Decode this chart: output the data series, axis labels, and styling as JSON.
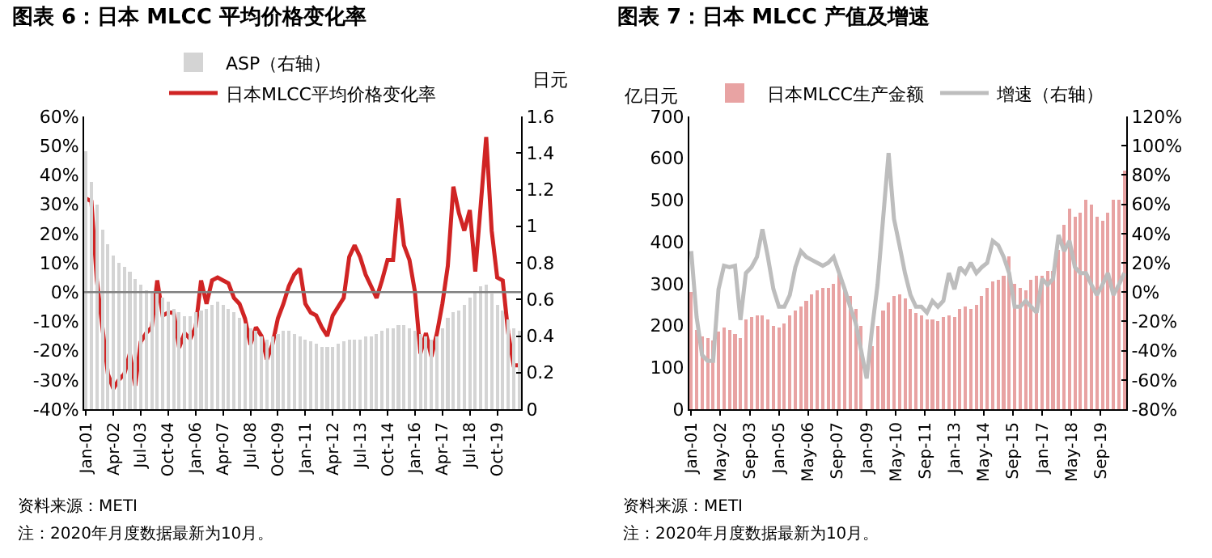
{
  "chart_data": [
    {
      "type": "bar",
      "title": "图表 6：日本 MLCC 平均价格变化率",
      "ylabel": null,
      "y2label": "日元",
      "legend": "top",
      "x": [
        "2001-01",
        "2001-04",
        "2001-07",
        "2001-10",
        "2002-01",
        "2002-04",
        "2002-07",
        "2002-10",
        "2003-01",
        "2003-04",
        "2003-07",
        "2003-10",
        "2004-01",
        "2004-04",
        "2004-07",
        "2004-10",
        "2005-01",
        "2005-04",
        "2005-07",
        "2005-10",
        "2006-01",
        "2006-04",
        "2006-07",
        "2006-10",
        "2007-01",
        "2007-04",
        "2007-07",
        "2007-10",
        "2008-01",
        "2008-04",
        "2008-07",
        "2008-10",
        "2009-01",
        "2009-04",
        "2009-07",
        "2009-10",
        "2010-01",
        "2010-04",
        "2010-07",
        "2010-10",
        "2011-01",
        "2011-04",
        "2011-07",
        "2011-10",
        "2012-01",
        "2012-04",
        "2012-07",
        "2012-10",
        "2013-01",
        "2013-04",
        "2013-07",
        "2013-10",
        "2014-01",
        "2014-04",
        "2014-07",
        "2014-10",
        "2015-01",
        "2015-04",
        "2015-07",
        "2015-10",
        "2016-01",
        "2016-04",
        "2016-07",
        "2016-10",
        "2017-01",
        "2017-04",
        "2017-07",
        "2017-10",
        "2018-01",
        "2018-04",
        "2018-07",
        "2018-10",
        "2019-01",
        "2019-04",
        "2019-07",
        "2019-10",
        "2020-01",
        "2020-04",
        "2020-07",
        "2020-10"
      ],
      "series": [
        {
          "name": "ASP（右轴）",
          "axis": "y2",
          "color": "#d4d4d4",
          "values": [
            1.41,
            1.24,
            1.12,
            0.98,
            0.9,
            0.84,
            0.8,
            0.78,
            0.75,
            0.71,
            0.68,
            0.65,
            0.64,
            0.63,
            0.61,
            0.59,
            0.55,
            0.53,
            0.51,
            0.51,
            0.53,
            0.54,
            0.55,
            0.57,
            0.59,
            0.57,
            0.55,
            0.53,
            0.5,
            0.47,
            0.44,
            0.43,
            0.4,
            0.38,
            0.4,
            0.41,
            0.43,
            0.43,
            0.41,
            0.4,
            0.38,
            0.37,
            0.36,
            0.34,
            0.34,
            0.34,
            0.36,
            0.37,
            0.38,
            0.38,
            0.38,
            0.4,
            0.4,
            0.41,
            0.43,
            0.44,
            0.44,
            0.46,
            0.46,
            0.44,
            0.43,
            0.41,
            0.4,
            0.38,
            0.4,
            0.44,
            0.5,
            0.53,
            0.54,
            0.57,
            0.61,
            0.64,
            0.67,
            0.68,
            0.63,
            0.57,
            0.54,
            0.49,
            0.44,
            0.43
          ]
        },
        {
          "name": "日本MLCC平均价格变化率",
          "type": "line",
          "color": "#d02424",
          "values": [
            32,
            31,
            4,
            -12,
            -28,
            -33,
            -30,
            -28,
            -21,
            -32,
            -17,
            -14,
            -12,
            4,
            -8,
            -7,
            -7,
            -19,
            -14,
            -16,
            -12,
            4,
            -4,
            4,
            5,
            4,
            3,
            -2,
            -4,
            -9,
            -18,
            -12,
            -15,
            -23,
            -18,
            -9,
            -4,
            2,
            6,
            8,
            -4,
            -7,
            -8,
            -12,
            -15,
            -8,
            -5,
            -2,
            12,
            16,
            12,
            6,
            2,
            -2,
            4,
            11,
            11,
            32,
            16,
            11,
            0,
            -21,
            -14,
            -22,
            -14,
            -4,
            9,
            36,
            27,
            21,
            28,
            7,
            30,
            53,
            21,
            5,
            4,
            -14,
            -25,
            -25
          ]
        }
      ],
      "xlim": [
        "2000-12",
        "2020-11"
      ],
      "xticks": [
        {
          "value": "2001-01",
          "label": "Jan-01"
        },
        {
          "value": "2002-04",
          "label": "Apr-02"
        },
        {
          "value": "2003-07",
          "label": "Jul-03"
        },
        {
          "value": "2004-10",
          "label": "Oct-04"
        },
        {
          "value": "2006-01",
          "label": "Jan-06"
        },
        {
          "value": "2007-04",
          "label": "Apr-07"
        },
        {
          "value": "2008-07",
          "label": "Jul-08"
        },
        {
          "value": "2009-10",
          "label": "Oct-09"
        },
        {
          "value": "2011-01",
          "label": "Jan-11"
        },
        {
          "value": "2012-04",
          "label": "Apr-12"
        },
        {
          "value": "2013-07",
          "label": "Jul-13"
        },
        {
          "value": "2014-10",
          "label": "Oct-14"
        },
        {
          "value": "2016-01",
          "label": "Jan-16"
        },
        {
          "value": "2017-04",
          "label": "Apr-17"
        },
        {
          "value": "2018-07",
          "label": "Jul-18"
        },
        {
          "value": "2019-10",
          "label": "Oct-19"
        }
      ],
      "ylim": [
        -40,
        60
      ],
      "yticks": [
        {
          "value": -40,
          "label": "-40%"
        },
        {
          "value": -30,
          "label": "-30%"
        },
        {
          "value": -20,
          "label": "-20%"
        },
        {
          "value": -10,
          "label": "-10%"
        },
        {
          "value": 0,
          "label": "0%"
        },
        {
          "value": 10,
          "label": "10%"
        },
        {
          "value": 20,
          "label": "20%"
        },
        {
          "value": 30,
          "label": "30%"
        },
        {
          "value": 40,
          "label": "40%"
        },
        {
          "value": 50,
          "label": "50%"
        },
        {
          "value": 60,
          "label": "60%"
        }
      ],
      "y2lim": [
        0,
        1.6
      ],
      "y2ticks": [
        0,
        0.2,
        0.4,
        0.6,
        0.8,
        1,
        1.2,
        1.4,
        1.6
      ],
      "ref_lines": [
        {
          "axis": "y",
          "value": 0,
          "color": "#808080"
        }
      ],
      "annotations": [
        "资料来源：METI",
        "注：2020年月度数据最新为10月。"
      ]
    },
    {
      "type": "bar",
      "title": "图表 7：日本 MLCC 产值及增速",
      "ylabel": "亿日元",
      "legend": "top",
      "x": [
        "2001-01",
        "2001-04",
        "2001-07",
        "2001-10",
        "2002-01",
        "2002-04",
        "2002-07",
        "2002-10",
        "2003-01",
        "2003-04",
        "2003-07",
        "2003-10",
        "2004-01",
        "2004-04",
        "2004-07",
        "2004-10",
        "2005-01",
        "2005-04",
        "2005-07",
        "2005-10",
        "2006-01",
        "2006-04",
        "2006-07",
        "2006-10",
        "2007-01",
        "2007-04",
        "2007-07",
        "2007-10",
        "2008-01",
        "2008-04",
        "2008-07",
        "2008-10",
        "2009-01",
        "2009-04",
        "2009-07",
        "2009-10",
        "2010-01",
        "2010-04",
        "2010-07",
        "2010-10",
        "2011-01",
        "2011-04",
        "2011-07",
        "2011-10",
        "2012-01",
        "2012-04",
        "2012-07",
        "2012-10",
        "2013-01",
        "2013-04",
        "2013-07",
        "2013-10",
        "2014-01",
        "2014-04",
        "2014-07",
        "2014-10",
        "2015-01",
        "2015-04",
        "2015-07",
        "2015-10",
        "2016-01",
        "2016-04",
        "2016-07",
        "2016-10",
        "2017-01",
        "2017-04",
        "2017-07",
        "2017-10",
        "2018-01",
        "2018-04",
        "2018-07",
        "2018-10",
        "2019-01",
        "2019-04",
        "2019-07",
        "2019-10",
        "2020-01",
        "2020-04",
        "2020-07",
        "2020-10"
      ],
      "series": [
        {
          "name": "增速（右轴）",
          "type": "line",
          "axis": "y2",
          "color": "#bdbdbd",
          "values": [
            28,
            -17,
            -43,
            -47,
            -47,
            2,
            18,
            17,
            18,
            -19,
            13,
            17,
            24,
            43,
            24,
            2,
            -10,
            -10,
            -2,
            17,
            28,
            24,
            22,
            20,
            18,
            20,
            24,
            13,
            2,
            -10,
            -21,
            -40,
            -59,
            -25,
            5,
            50,
            95,
            50,
            32,
            13,
            -2,
            -10,
            -10,
            -14,
            -6,
            -10,
            -6,
            13,
            2,
            17,
            13,
            20,
            13,
            17,
            20,
            35,
            32,
            24,
            13,
            -10,
            -10,
            -6,
            -10,
            -14,
            9,
            5,
            9,
            39,
            28,
            35,
            17,
            13,
            13,
            5,
            -2,
            5,
            13,
            -2,
            5,
            13
          ]
        },
        {
          "name": "日本MLCC生产金额",
          "color": "#e8a3a3",
          "values": [
            280,
            190,
            175,
            170,
            165,
            185,
            195,
            190,
            180,
            170,
            215,
            220,
            225,
            225,
            215,
            200,
            195,
            205,
            225,
            235,
            245,
            260,
            275,
            285,
            290,
            290,
            300,
            330,
            290,
            270,
            240,
            200,
            null,
            150,
            200,
            235,
            255,
            270,
            275,
            265,
            240,
            230,
            225,
            215,
            215,
            210,
            220,
            225,
            220,
            240,
            245,
            240,
            250,
            270,
            290,
            305,
            310,
            320,
            365,
            300,
            290,
            285,
            310,
            320,
            320,
            330,
            330,
            380,
            440,
            480,
            460,
            470,
            500,
            490,
            460,
            450,
            470,
            500,
            500,
            570
          ]
        }
      ],
      "xlim": [
        "2000-12",
        "2020-11"
      ],
      "xticks": [
        {
          "value": "2001-01",
          "label": "Jan-01"
        },
        {
          "value": "2002-05",
          "label": "May-02"
        },
        {
          "value": "2003-09",
          "label": "Sep-03"
        },
        {
          "value": "2005-01",
          "label": "Jan-05"
        },
        {
          "value": "2006-05",
          "label": "May-06"
        },
        {
          "value": "2007-09",
          "label": "Sep-07"
        },
        {
          "value": "2009-01",
          "label": "Jan-09"
        },
        {
          "value": "2010-05",
          "label": "May-10"
        },
        {
          "value": "2011-09",
          "label": "Sep-11"
        },
        {
          "value": "2013-01",
          "label": "Jan-13"
        },
        {
          "value": "2014-05",
          "label": "May-14"
        },
        {
          "value": "2015-09",
          "label": "Sep-15"
        },
        {
          "value": "2017-01",
          "label": "Jan-17"
        },
        {
          "value": "2018-05",
          "label": "May-18"
        },
        {
          "value": "2019-09",
          "label": "Sep-19"
        }
      ],
      "ylim": [
        0,
        700
      ],
      "yticks": [
        0,
        100,
        200,
        300,
        400,
        500,
        600,
        700
      ],
      "y2lim": [
        -80,
        120
      ],
      "y2ticks": [
        {
          "value": -80,
          "label": "-80%"
        },
        {
          "value": -60,
          "label": "-60%"
        },
        {
          "value": -40,
          "label": "-40%"
        },
        {
          "value": -20,
          "label": "-20%"
        },
        {
          "value": 0,
          "label": "0%"
        },
        {
          "value": 20,
          "label": "20%"
        },
        {
          "value": 40,
          "label": "40%"
        },
        {
          "value": 60,
          "label": "60%"
        },
        {
          "value": 80,
          "label": "80%"
        },
        {
          "value": 100,
          "label": "100%"
        },
        {
          "value": 120,
          "label": "120%"
        }
      ],
      "annotations": [
        "资料来源：METI",
        "注：2020年月度数据最新为10月。"
      ]
    }
  ]
}
